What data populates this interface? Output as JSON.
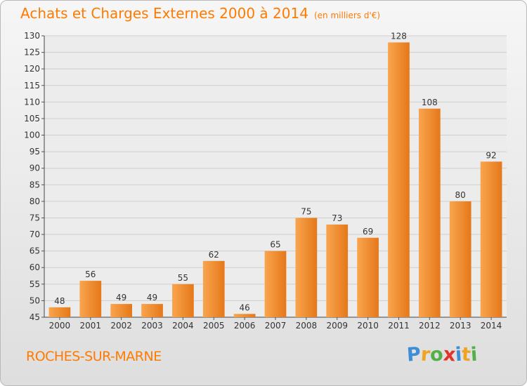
{
  "page": {
    "title": "Achats et Charges Externes 2000 à 2014",
    "subtitle": "(en milliers d'€)",
    "place": "ROCHES-SUR-MARNE",
    "brand": "Proxiti"
  },
  "colors": {
    "accent": "#ff7a00",
    "bar_light": "#f9a54e",
    "bar_dark": "#e5781a",
    "brand_letters": [
      "#3d8ed6",
      "#f0a320",
      "#52b049",
      "#e2332d",
      "#3d8ed6",
      "#f0a320",
      "#52b049"
    ]
  },
  "chart_data": {
    "type": "bar",
    "title": "Achats et Charges Externes 2000 à 2014",
    "subtitle": "(en milliers d'€)",
    "categories": [
      "2000",
      "2001",
      "2002",
      "2003",
      "2004",
      "2005",
      "2006",
      "2007",
      "2008",
      "2009",
      "2010",
      "2011",
      "2012",
      "2013",
      "2014"
    ],
    "values": [
      48,
      56,
      49,
      49,
      55,
      62,
      46,
      65,
      75,
      73,
      69,
      128,
      108,
      80,
      92
    ],
    "ylim": [
      45,
      130
    ],
    "yticks": [
      45,
      50,
      55,
      60,
      65,
      70,
      75,
      80,
      85,
      90,
      95,
      100,
      105,
      110,
      115,
      120,
      125,
      130
    ],
    "xlabel": "",
    "ylabel": "",
    "grid": true,
    "data_labels": true
  }
}
